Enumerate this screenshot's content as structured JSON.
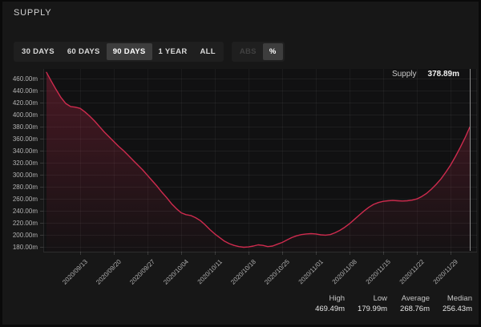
{
  "title": "SUPPLY",
  "toolbar": {
    "range_buttons": [
      {
        "label": "30 DAYS",
        "selected": false
      },
      {
        "label": "60 DAYS",
        "selected": false
      },
      {
        "label": "90 DAYS",
        "selected": true
      },
      {
        "label": "1 YEAR",
        "selected": false
      },
      {
        "label": "ALL",
        "selected": false
      }
    ],
    "unit_buttons": [
      {
        "label": "ABS",
        "selected": false,
        "disabled": true
      },
      {
        "label": "%",
        "selected": true,
        "disabled": false
      }
    ]
  },
  "legend": {
    "series_name": "Supply",
    "value": "378.89m"
  },
  "stats": [
    {
      "label": "High",
      "value": "469.49m"
    },
    {
      "label": "Low",
      "value": "179.99m"
    },
    {
      "label": "Average",
      "value": "268.76m"
    },
    {
      "label": "Median",
      "value": "256.43m"
    }
  ],
  "chart_data": {
    "type": "area",
    "title": "Supply, 90 days",
    "unit": "m",
    "line_color": "#ce2b4e",
    "area_color": "#ce2b4e",
    "crosshair_color": "#8f8f8f",
    "grid": true,
    "ylim": [
      180,
      472
    ],
    "y_ticks": [
      460,
      440,
      420,
      400,
      380,
      360,
      340,
      320,
      300,
      280,
      260,
      240,
      220,
      200,
      180
    ],
    "x_ticks": [
      "2020/09/13",
      "2020/09/20",
      "2020/09/27",
      "2020/10/04",
      "2020/10/11",
      "2020/10/18",
      "2020/10/25",
      "2020/11/01",
      "2020/11/08",
      "2020/11/15",
      "2020/11/22",
      "2020/11/29"
    ],
    "x_tick_indices": [
      7,
      14,
      21,
      28,
      35,
      42,
      49,
      56,
      63,
      70,
      77,
      84
    ],
    "dates": [
      "2020/09/06",
      "2020/09/07",
      "2020/09/08",
      "2020/09/09",
      "2020/09/10",
      "2020/09/11",
      "2020/09/12",
      "2020/09/13",
      "2020/09/14",
      "2020/09/15",
      "2020/09/16",
      "2020/09/17",
      "2020/09/18",
      "2020/09/19",
      "2020/09/20",
      "2020/09/21",
      "2020/09/22",
      "2020/09/23",
      "2020/09/24",
      "2020/09/25",
      "2020/09/26",
      "2020/09/27",
      "2020/09/28",
      "2020/09/29",
      "2020/09/30",
      "2020/10/01",
      "2020/10/02",
      "2020/10/03",
      "2020/10/04",
      "2020/10/05",
      "2020/10/06",
      "2020/10/07",
      "2020/10/08",
      "2020/10/09",
      "2020/10/10",
      "2020/10/11",
      "2020/10/12",
      "2020/10/13",
      "2020/10/14",
      "2020/10/15",
      "2020/10/16",
      "2020/10/17",
      "2020/10/18",
      "2020/10/19",
      "2020/10/20",
      "2020/10/21",
      "2020/10/22",
      "2020/10/23",
      "2020/10/24",
      "2020/10/25",
      "2020/10/26",
      "2020/10/27",
      "2020/10/28",
      "2020/10/29",
      "2020/10/30",
      "2020/10/31",
      "2020/11/01",
      "2020/11/02",
      "2020/11/03",
      "2020/11/04",
      "2020/11/05",
      "2020/11/06",
      "2020/11/07",
      "2020/11/08",
      "2020/11/09",
      "2020/11/10",
      "2020/11/11",
      "2020/11/12",
      "2020/11/13",
      "2020/11/14",
      "2020/11/15",
      "2020/11/16",
      "2020/11/17",
      "2020/11/18",
      "2020/11/19",
      "2020/11/20",
      "2020/11/21",
      "2020/11/22",
      "2020/11/23",
      "2020/11/24",
      "2020/11/25",
      "2020/11/26",
      "2020/11/27",
      "2020/11/28",
      "2020/11/29",
      "2020/11/30",
      "2020/12/01",
      "2020/12/02",
      "2020/12/03"
    ],
    "values": [
      469.5,
      455,
      441,
      428,
      418,
      413,
      412,
      410,
      404,
      397,
      389,
      380,
      371,
      363,
      355,
      347,
      340,
      332,
      324,
      316,
      308,
      299,
      290,
      281,
      271,
      262,
      252,
      244,
      237,
      234,
      232.5,
      229,
      224,
      217,
      209,
      202,
      196,
      190,
      186,
      183,
      181,
      180,
      180.5,
      182,
      184,
      183,
      181,
      182,
      185,
      188,
      192,
      196,
      199,
      201,
      202,
      202.5,
      202,
      200.5,
      200,
      201,
      204,
      208,
      213,
      219,
      226,
      233,
      240,
      246,
      251,
      254,
      256,
      257,
      257.5,
      257,
      256.5,
      257,
      258,
      260,
      264,
      269,
      276,
      284,
      293,
      304,
      316,
      330,
      345,
      361,
      378.89
    ]
  }
}
